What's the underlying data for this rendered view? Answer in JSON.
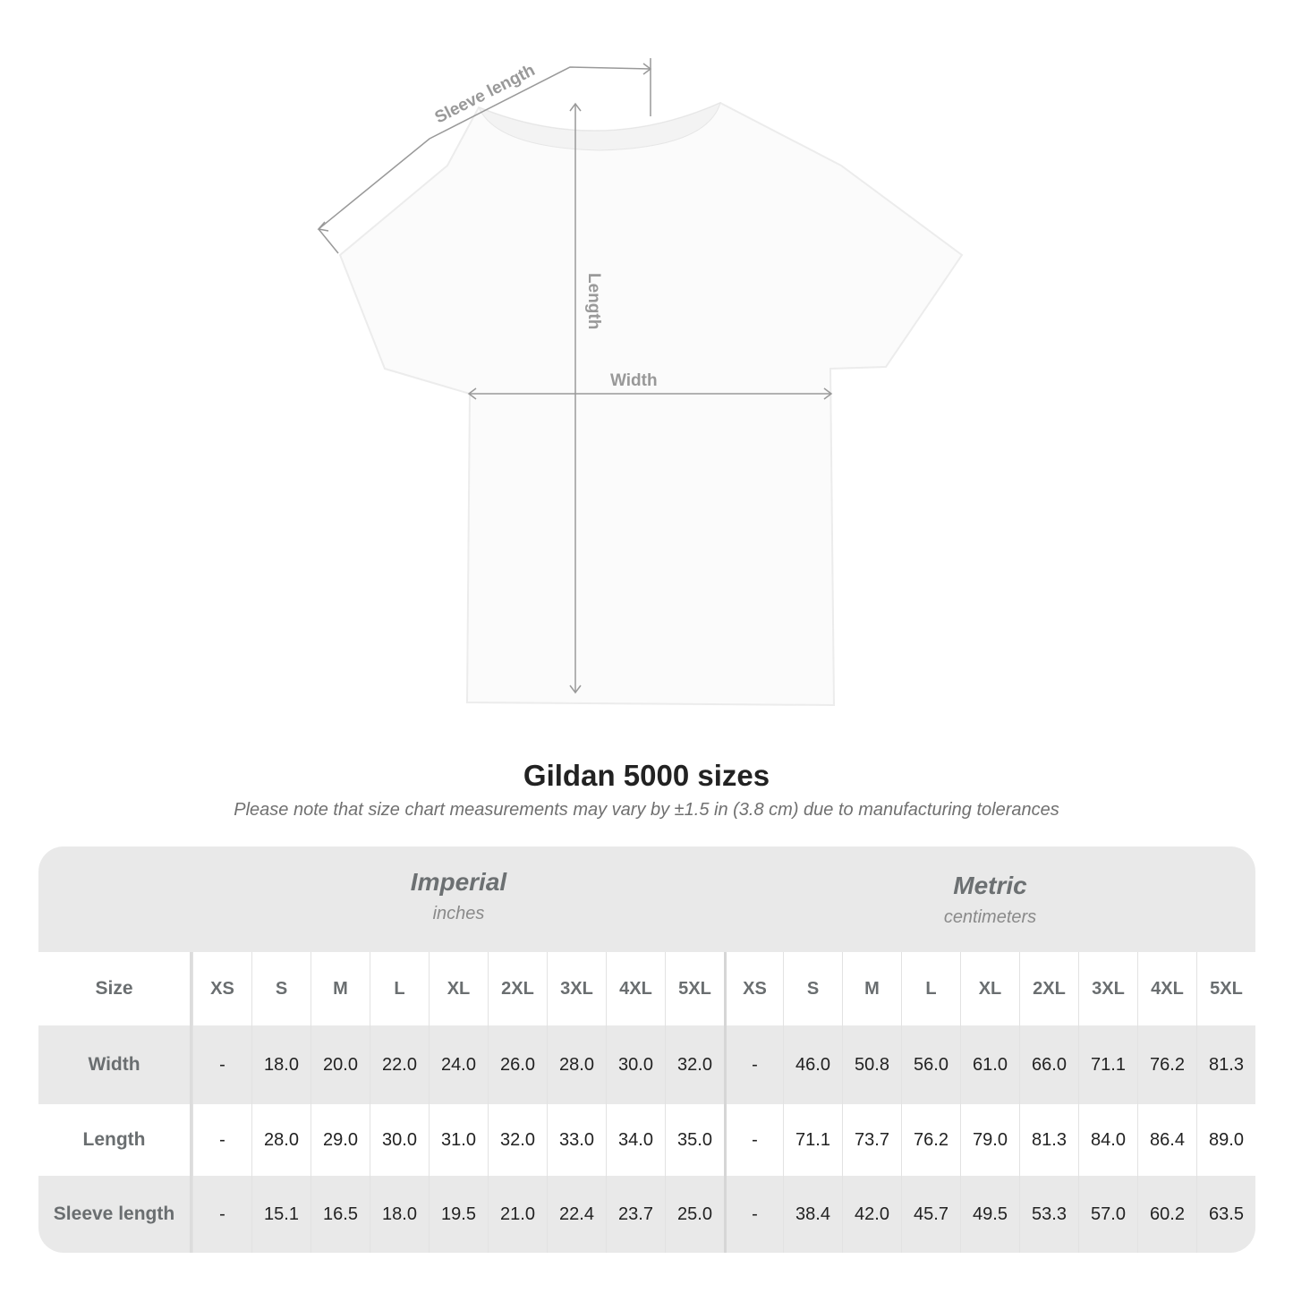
{
  "diagram": {
    "labels": {
      "sleeve": "Sleeve length",
      "length": "Length",
      "width": "Width"
    },
    "line_color": "#999999"
  },
  "title": "Gildan 5000 sizes",
  "note": "Please note that size chart measurements may vary by ±1.5 in (3.8 cm) due to manufacturing tolerances",
  "table": {
    "imperial": {
      "name": "Imperial",
      "unit": "inches"
    },
    "metric": {
      "name": "Metric",
      "unit": "centimeters"
    },
    "size_label": "Size",
    "sizes": [
      "XS",
      "S",
      "M",
      "L",
      "XL",
      "2XL",
      "3XL",
      "4XL",
      "5XL"
    ],
    "rows": [
      {
        "label": "Width",
        "imperial": [
          "-",
          "18.0",
          "20.0",
          "22.0",
          "24.0",
          "26.0",
          "28.0",
          "30.0",
          "32.0"
        ],
        "metric": [
          "-",
          "46.0",
          "50.8",
          "56.0",
          "61.0",
          "66.0",
          "71.1",
          "76.2",
          "81.3"
        ]
      },
      {
        "label": "Length",
        "imperial": [
          "-",
          "28.0",
          "29.0",
          "30.0",
          "31.0",
          "32.0",
          "33.0",
          "34.0",
          "35.0"
        ],
        "metric": [
          "-",
          "71.1",
          "73.7",
          "76.2",
          "79.0",
          "81.3",
          "84.0",
          "86.4",
          "89.0"
        ]
      },
      {
        "label": "Sleeve length",
        "imperial": [
          "-",
          "15.1",
          "16.5",
          "18.0",
          "19.5",
          "21.0",
          "22.4",
          "23.7",
          "25.0"
        ],
        "metric": [
          "-",
          "38.4",
          "42.0",
          "45.7",
          "49.5",
          "53.3",
          "57.0",
          "60.2",
          "63.5"
        ]
      }
    ],
    "colors": {
      "band": "#e9e9e9",
      "header_text": "#6a6e70"
    }
  }
}
